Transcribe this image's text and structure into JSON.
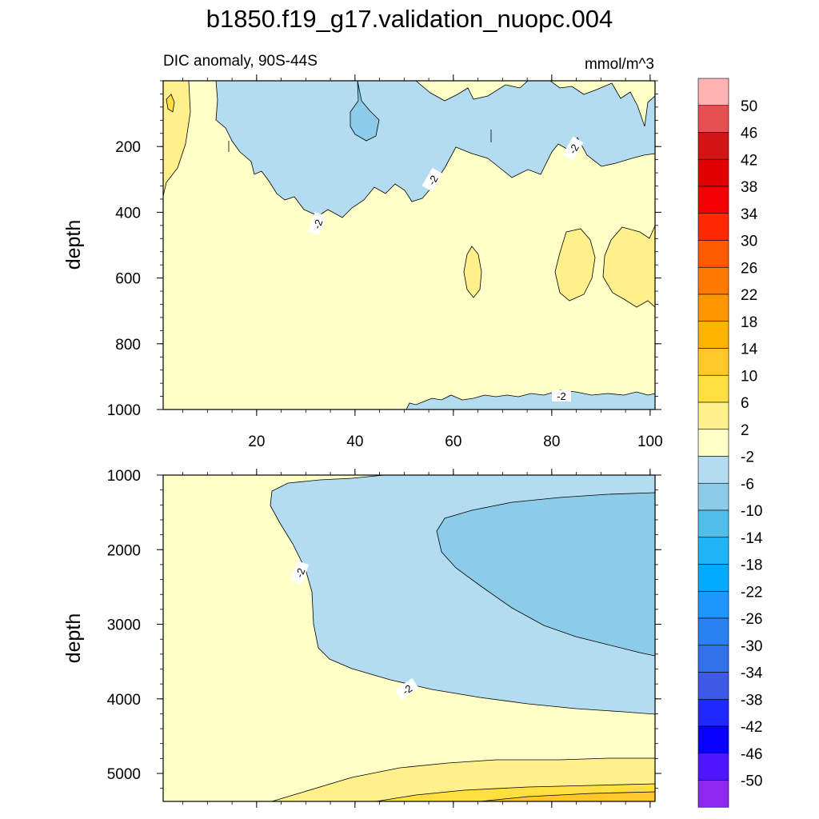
{
  "figure": {
    "title": "b1850.f19_g17.validation_nuopc.004",
    "variable_label": "DIC anomaly, 90S-44S",
    "units_label": "mmol/m^3"
  },
  "chart_data": [
    {
      "type": "heatmap",
      "panel": "upper",
      "xlabel": "",
      "ylabel": "depth",
      "xlim": [
        1,
        101
      ],
      "ylim": [
        0,
        1000
      ],
      "y_reversed": true,
      "xticks": [
        20,
        40,
        60,
        80,
        100
      ],
      "yticks": [
        200,
        400,
        600,
        800,
        1000
      ],
      "contour_labels": [
        "-2",
        "-2",
        "-2",
        "-2"
      ],
      "regions": [
        {
          "name": "background",
          "level_range": [
            -2,
            2
          ],
          "color": "#FFFFC8"
        },
        {
          "name": "upper-ocean anomaly",
          "level_range": [
            -6,
            -2
          ],
          "color": "#B4DCF0"
        },
        {
          "name": "local minimum near x=41",
          "level_range": [
            -10,
            -6
          ],
          "color": "#8CCCE8"
        },
        {
          "name": "surface maximum near x=3",
          "level_range": [
            2,
            6
          ],
          "color": "#FFF08C"
        },
        {
          "name": "mid-depth maxima near x=65, 85, 95",
          "level_range": [
            2,
            6
          ],
          "color": "#FFF08C"
        },
        {
          "name": "deep minimum x=50-101",
          "level_range": [
            -6,
            -2
          ],
          "color": "#B4DCF0"
        }
      ]
    },
    {
      "type": "heatmap",
      "panel": "lower",
      "xlabel": "",
      "ylabel": "depth",
      "xlim": [
        1,
        101
      ],
      "ylim": [
        1000,
        5375
      ],
      "y_reversed": true,
      "yticks": [
        1000,
        2000,
        3000,
        4000,
        5000
      ],
      "contour_labels": [
        "-2",
        "-2"
      ],
      "regions": [
        {
          "name": "background",
          "level_range": [
            -2,
            2
          ],
          "color": "#FFFFC8"
        },
        {
          "name": "deep anomaly tongue",
          "level_range": [
            -6,
            -2
          ],
          "color": "#B4DCF0"
        },
        {
          "name": "core minimum",
          "level_range": [
            -10,
            -6
          ],
          "color": "#8CCCE8"
        },
        {
          "name": "abyssal maximum",
          "level_range": [
            2,
            6
          ],
          "color": "#FFF08C"
        },
        {
          "name": "abyssal maximum core",
          "level_range": [
            6,
            10
          ],
          "color": "#FFE040"
        },
        {
          "name": "abyssal maximum bottom",
          "level_range": [
            10,
            14
          ],
          "color": "#FFC828"
        }
      ]
    }
  ],
  "colorbar": {
    "labels": [
      "50",
      "46",
      "42",
      "38",
      "34",
      "30",
      "26",
      "22",
      "18",
      "14",
      "10",
      "6",
      "2",
      "-2",
      "-6",
      "-10",
      "-14",
      "-18",
      "-22",
      "-26",
      "-30",
      "-34",
      "-38",
      "-42",
      "-46",
      "-50"
    ],
    "colors": [
      "#FFB4B4",
      "#E65050",
      "#D21414",
      "#E10000",
      "#F50000",
      "#FF2800",
      "#FF5A00",
      "#FF7800",
      "#FF9600",
      "#FFB400",
      "#FFC828",
      "#FFE040",
      "#FFF08C",
      "#FFFFC8",
      "#B4DCF0",
      "#8CCCE8",
      "#50BEEB",
      "#1EB4F5",
      "#00AAFF",
      "#1E96FF",
      "#2882F0",
      "#3273EB",
      "#3C5AE6",
      "#1E28FF",
      "#0A00FF",
      "#5014FF",
      "#8C28F0"
    ]
  }
}
